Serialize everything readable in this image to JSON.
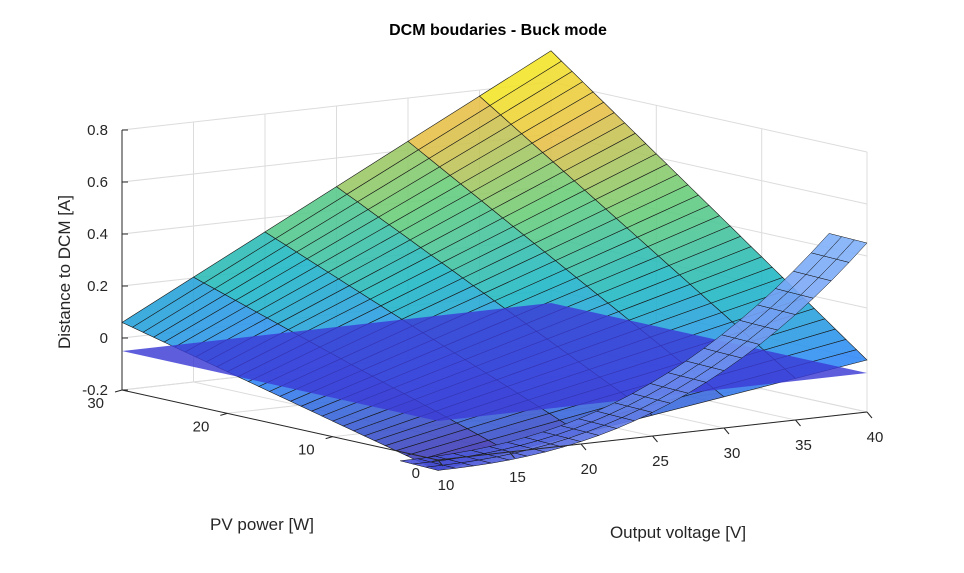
{
  "chart_data": {
    "type": "surface",
    "title": "DCM boudaries - Buck mode",
    "xlabel": "Output voltage [V]",
    "ylabel": "PV power [W]",
    "zlabel": "Distance to DCM [A]",
    "xlim": [
      10,
      40
    ],
    "ylim": [
      0,
      30
    ],
    "zlim": [
      -0.2,
      0.8
    ],
    "x_ticks": [
      "10",
      "15",
      "20",
      "25",
      "30",
      "35",
      "40"
    ],
    "y_ticks": [
      "0",
      "10",
      "20",
      "30"
    ],
    "z_ticks": [
      "-0.2",
      "0",
      "0.2",
      "0.4",
      "0.6",
      "0.8"
    ],
    "grid": true,
    "surfaces": [
      {
        "colormap": "parula",
        "mesh_x": [
          10,
          40
        ],
        "mesh_y_points": 31,
        "corner_values": {
          "v10_p0": -0.24,
          "v10_p30": 0.06,
          "v40_p30": 0.92,
          "v40_p0": 0.0
        }
      },
      {
        "colormap": "steep blue",
        "mesh_x": [
          10,
          40
        ],
        "mesh_y_points": 31,
        "corner_values": {
          "v10_p0": -0.24,
          "v40_p0": 0.45
        }
      },
      {
        "color": "#3a3ad6",
        "plane_z": -0.05
      }
    ]
  }
}
